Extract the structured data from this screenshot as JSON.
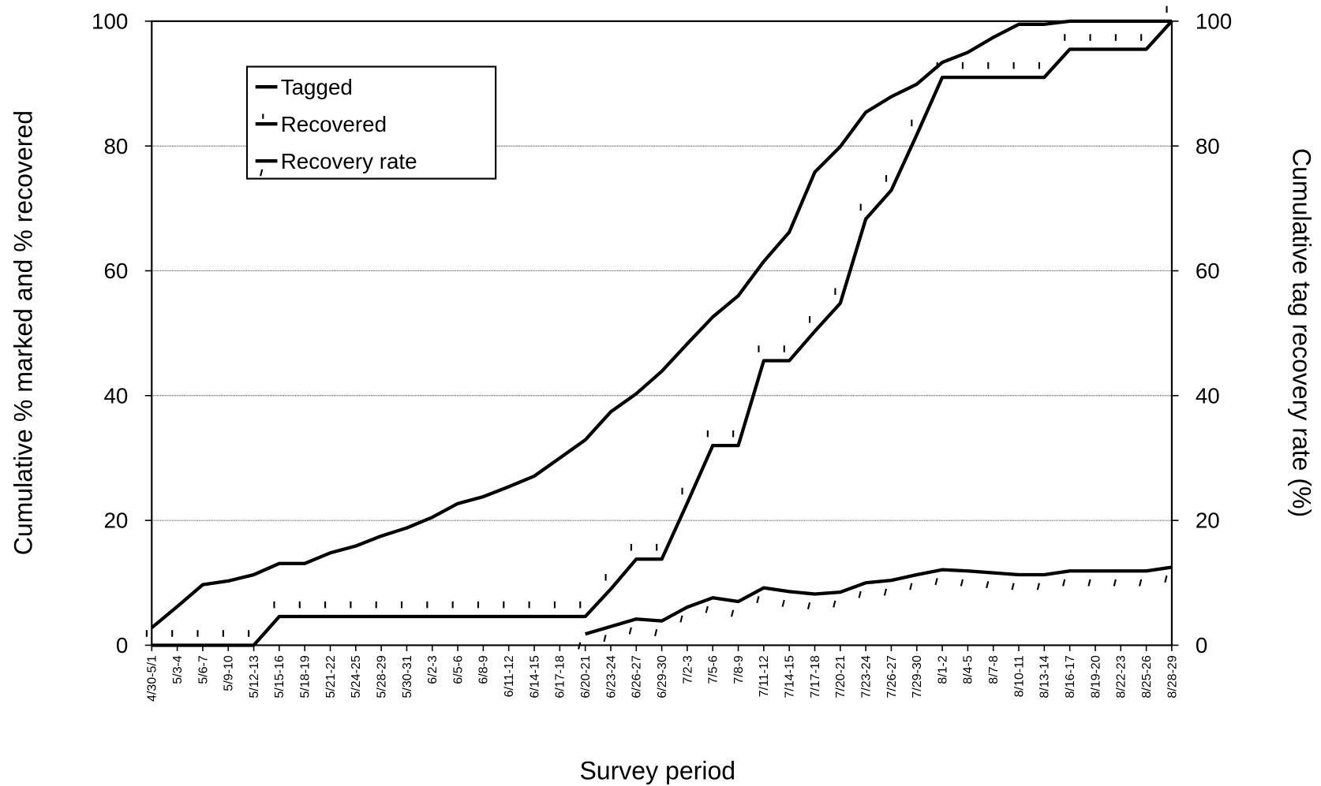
{
  "chart_data": {
    "type": "line",
    "xlabel": "Survey period",
    "ylabel": "Cumulative % marked and % recovered",
    "y2label": "Cumulative tag recovery rate (%)",
    "categories": [
      "4/30-5/1",
      "5/3-4",
      "5/6-7",
      "5/9-10",
      "5/12-13",
      "5/15-16",
      "5/18-19",
      "5/21-22",
      "5/24-25",
      "5/28-29",
      "5/30-31",
      "6/2-3",
      "6/5-6",
      "6/8-9",
      "6/11-12",
      "6/14-15",
      "6/17-18",
      "6/20-21",
      "6/23-24",
      "6/26-27",
      "6/29-30",
      "7/2-3",
      "7/5-6",
      "7/8-9",
      "7/11-12",
      "7/14-15",
      "7/17-18",
      "7/20-21",
      "7/23-24",
      "7/26-27",
      "7/29-30",
      "8/1-2",
      "8/4-5",
      "8/7-8",
      "8/10-11",
      "8/13-14",
      "8/16-17",
      "8/19-20",
      "8/22-23",
      "8/25-26",
      "8/28-29"
    ],
    "series": [
      {
        "name": "Tagged",
        "color": "#000000",
        "values": [
          2.8,
          6.2,
          9.7,
          10.3,
          11.3,
          13.1,
          13.1,
          14.8,
          15.9,
          17.5,
          18.8,
          20.5,
          22.7,
          23.8,
          25.4,
          27.1,
          30,
          32.9,
          37.4,
          40.3,
          43.9,
          48.3,
          52.6,
          56,
          61.5,
          66.2,
          75.8,
          79.9,
          85.4,
          87.9,
          89.9,
          93.4,
          95,
          97.4,
          99.5,
          99.5,
          100,
          100,
          100,
          100,
          100
        ]
      },
      {
        "name": "Recovered",
        "color": "#000000",
        "values": [
          0,
          0,
          0,
          0,
          0,
          4.6,
          4.6,
          4.6,
          4.6,
          4.6,
          4.6,
          4.6,
          4.6,
          4.6,
          4.6,
          4.6,
          4.6,
          4.6,
          9,
          13.8,
          13.8,
          22.8,
          32,
          32,
          45.6,
          45.6,
          50.3,
          54.8,
          68.3,
          72.9,
          81.8,
          91,
          91,
          91,
          91,
          91,
          95.5,
          95.5,
          95.5,
          95.5,
          100
        ]
      },
      {
        "name": "Recovery rate",
        "color": "#000000",
        "axis": "y2",
        "values": [
          null,
          null,
          null,
          null,
          null,
          null,
          null,
          null,
          null,
          null,
          null,
          null,
          null,
          null,
          null,
          null,
          null,
          1.8,
          3,
          4.2,
          3.9,
          6.1,
          7.6,
          7,
          9.2,
          8.6,
          8.2,
          8.5,
          10,
          10.4,
          11.3,
          12.1,
          11.9,
          11.6,
          11.3,
          11.3,
          11.9,
          11.9,
          11.9,
          11.9,
          12.5
        ]
      }
    ],
    "ylim": [
      0,
      100
    ],
    "yticks": [
      0,
      20,
      40,
      60,
      80,
      100
    ],
    "y2lim": [
      0,
      100
    ],
    "y2ticks": [
      0,
      20,
      40,
      60,
      80,
      100
    ],
    "grid": true
  }
}
